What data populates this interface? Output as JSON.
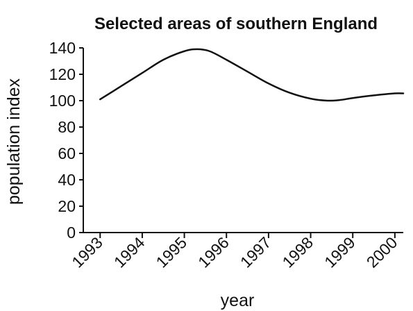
{
  "chart_data": {
    "type": "line",
    "title": "Selected areas of southern England",
    "xlabel": "year",
    "ylabel": "population index",
    "x": [
      "1993",
      "1994",
      "1995",
      "1996",
      "1997",
      "1998",
      "1999",
      "2000"
    ],
    "series": [
      {
        "name": "",
        "points": [
          [
            1993.0,
            101
          ],
          [
            1993.5,
            111
          ],
          [
            1994.0,
            121
          ],
          [
            1994.5,
            131
          ],
          [
            1995.0,
            137.5
          ],
          [
            1995.3,
            139
          ],
          [
            1995.6,
            137.5
          ],
          [
            1996.0,
            131
          ],
          [
            1996.5,
            122
          ],
          [
            1997.0,
            113
          ],
          [
            1997.5,
            106
          ],
          [
            1998.0,
            101.5
          ],
          [
            1998.4,
            100
          ],
          [
            1998.7,
            100.5
          ],
          [
            1999.0,
            102
          ],
          [
            1999.5,
            104
          ],
          [
            2000.0,
            105.5
          ],
          [
            2000.2,
            105.5
          ]
        ],
        "color": "#111111"
      }
    ],
    "ylim": [
      0,
      140
    ],
    "yticks": [
      0,
      20,
      40,
      60,
      80,
      100,
      120,
      140
    ],
    "xlim": [
      1992.6,
      2000.2
    ],
    "grid": false,
    "legend": "none"
  }
}
